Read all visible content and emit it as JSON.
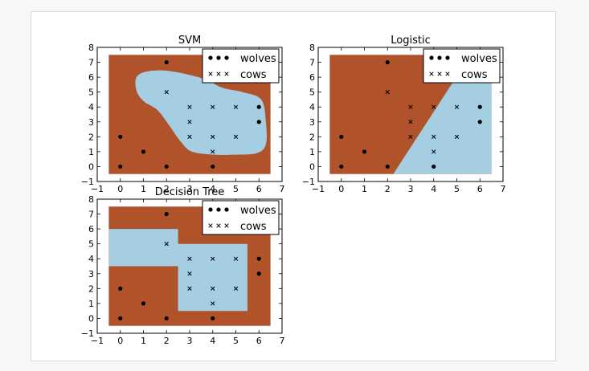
{
  "colors": {
    "wolves_region": "#b1532a",
    "cows_region": "#a6cee3",
    "marker": "#000000"
  },
  "chart_data": [
    {
      "type": "scatter",
      "title": "SVM",
      "xlim": [
        -1,
        7
      ],
      "ylim": [
        -1,
        8
      ],
      "xticks": [
        -1,
        0,
        1,
        2,
        3,
        4,
        5,
        6,
        7
      ],
      "yticks": [
        -1,
        0,
        1,
        2,
        3,
        4,
        5,
        6,
        7,
        8
      ],
      "xtick_labels": [
        "−1",
        "0",
        "1",
        "2",
        "3",
        "4",
        "5",
        "6",
        "7"
      ],
      "ytick_labels": [
        "−1",
        "0",
        "1",
        "2",
        "3",
        "4",
        "5",
        "6",
        "7",
        "8"
      ],
      "grid": false,
      "legend_position": "top-right",
      "series": [
        {
          "name": "wolves",
          "marker": "dot",
          "points": [
            [
              0,
              0
            ],
            [
              0,
              2
            ],
            [
              1,
              1
            ],
            [
              2,
              0
            ],
            [
              2,
              7
            ],
            [
              4,
              0
            ],
            [
              6,
              3
            ],
            [
              6,
              4
            ]
          ]
        },
        {
          "name": "cows",
          "marker": "x",
          "points": [
            [
              2,
              5
            ],
            [
              3,
              2
            ],
            [
              3,
              3
            ],
            [
              3,
              4
            ],
            [
              4,
              1
            ],
            [
              4,
              2
            ],
            [
              4,
              4
            ],
            [
              5,
              2
            ],
            [
              5,
              4
            ]
          ]
        }
      ],
      "decision_region": {
        "extent": {
          "x": [
            -0.5,
            6.5
          ],
          "y": [
            -0.5,
            7.5
          ]
        },
        "outside_class": "wolves",
        "inside_class": "cows",
        "boundary_shape": "smooth",
        "boundary": [
          [
            0.7,
            6.0
          ],
          [
            1.2,
            6.4
          ],
          [
            2.2,
            6.4
          ],
          [
            3.6,
            5.9
          ],
          [
            4.4,
            5.3
          ],
          [
            5.3,
            5.0
          ],
          [
            6.1,
            4.5
          ],
          [
            6.3,
            3.0
          ],
          [
            6.3,
            1.5
          ],
          [
            5.9,
            0.9
          ],
          [
            4.9,
            0.8
          ],
          [
            4.1,
            0.8
          ],
          [
            3.1,
            1.0
          ],
          [
            2.6,
            1.7
          ],
          [
            2.1,
            2.8
          ],
          [
            1.6,
            3.8
          ],
          [
            1.0,
            4.4
          ],
          [
            0.7,
            5.1
          ]
        ]
      }
    },
    {
      "type": "scatter",
      "title": "Logistic",
      "xlim": [
        -1,
        7
      ],
      "ylim": [
        -1,
        8
      ],
      "xticks": [
        -1,
        0,
        1,
        2,
        3,
        4,
        5,
        6,
        7
      ],
      "yticks": [
        -1,
        0,
        1,
        2,
        3,
        4,
        5,
        6,
        7,
        8
      ],
      "xtick_labels": [
        "−1",
        "0",
        "1",
        "2",
        "3",
        "4",
        "5",
        "6",
        "7"
      ],
      "ytick_labels": [
        "−1",
        "0",
        "1",
        "2",
        "3",
        "4",
        "5",
        "6",
        "7",
        "8"
      ],
      "grid": false,
      "legend_position": "top-right",
      "series": [
        {
          "name": "wolves",
          "marker": "dot",
          "points": [
            [
              0,
              0
            ],
            [
              0,
              2
            ],
            [
              1,
              1
            ],
            [
              2,
              0
            ],
            [
              2,
              7
            ],
            [
              4,
              0
            ],
            [
              6,
              3
            ],
            [
              6,
              4
            ]
          ]
        },
        {
          "name": "cows",
          "marker": "x",
          "points": [
            [
              2,
              5
            ],
            [
              3,
              2
            ],
            [
              3,
              3
            ],
            [
              3,
              4
            ],
            [
              4,
              1
            ],
            [
              4,
              2
            ],
            [
              4,
              4
            ],
            [
              5,
              2
            ],
            [
              5,
              4
            ]
          ]
        }
      ],
      "decision_region": {
        "extent": {
          "x": [
            -0.5,
            6.5
          ],
          "y": [
            -0.5,
            7.5
          ]
        },
        "outside_class": "wolves",
        "inside_class": "cows",
        "boundary_shape": "polygon",
        "boundary": [
          [
            2.25,
            -0.5
          ],
          [
            6.5,
            -0.5
          ],
          [
            6.5,
            7.5
          ],
          [
            5.6,
            7.5
          ]
        ]
      }
    },
    {
      "type": "scatter",
      "title": "Decision Tree",
      "xlim": [
        -1,
        7
      ],
      "ylim": [
        -1,
        8
      ],
      "xticks": [
        -1,
        0,
        1,
        2,
        3,
        4,
        5,
        6,
        7
      ],
      "yticks": [
        -1,
        0,
        1,
        2,
        3,
        4,
        5,
        6,
        7,
        8
      ],
      "xtick_labels": [
        "−1",
        "0",
        "1",
        "2",
        "3",
        "4",
        "5",
        "6",
        "7"
      ],
      "ytick_labels": [
        "−1",
        "0",
        "1",
        "2",
        "3",
        "4",
        "5",
        "6",
        "7",
        "8"
      ],
      "grid": false,
      "legend_position": "top-right",
      "series": [
        {
          "name": "wolves",
          "marker": "dot",
          "points": [
            [
              0,
              0
            ],
            [
              0,
              2
            ],
            [
              1,
              1
            ],
            [
              2,
              0
            ],
            [
              2,
              7
            ],
            [
              4,
              0
            ],
            [
              6,
              3
            ],
            [
              6,
              4
            ]
          ]
        },
        {
          "name": "cows",
          "marker": "x",
          "points": [
            [
              2,
              5
            ],
            [
              3,
              2
            ],
            [
              3,
              3
            ],
            [
              3,
              4
            ],
            [
              4,
              1
            ],
            [
              4,
              2
            ],
            [
              4,
              4
            ],
            [
              5,
              2
            ],
            [
              5,
              4
            ]
          ]
        }
      ],
      "decision_region": {
        "extent": {
          "x": [
            -0.5,
            6.5
          ],
          "y": [
            -0.5,
            7.5
          ]
        },
        "outside_class": "wolves",
        "inside_class": "cows",
        "boundary_shape": "polygon",
        "boundary": [
          [
            -0.5,
            3.5
          ],
          [
            -0.5,
            6.0
          ],
          [
            2.5,
            6.0
          ],
          [
            2.5,
            5.0
          ],
          [
            5.5,
            5.0
          ],
          [
            5.5,
            0.5
          ],
          [
            2.5,
            0.5
          ],
          [
            2.5,
            3.5
          ]
        ]
      }
    }
  ]
}
